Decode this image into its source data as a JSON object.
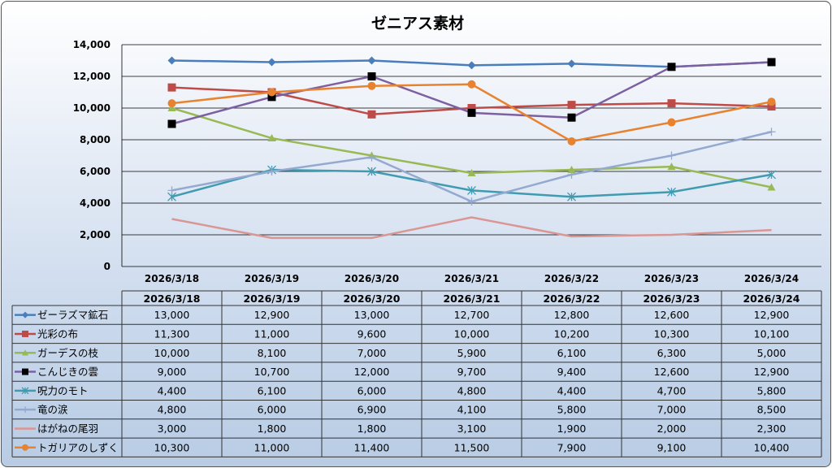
{
  "chart_data": {
    "type": "line",
    "title": "ゼニアス素材",
    "categories": [
      "2026/3/18",
      "2026/3/19",
      "2026/3/20",
      "2026/3/21",
      "2026/3/22",
      "2026/3/23",
      "2026/3/24"
    ],
    "ylim": [
      0,
      14000
    ],
    "yticks": [
      0,
      2000,
      4000,
      6000,
      8000,
      10000,
      12000,
      14000
    ],
    "ytick_labels": [
      "0",
      "2,000",
      "4,000",
      "6,000",
      "8,000",
      "10,000",
      "12,000",
      "14,000"
    ],
    "grid": true,
    "legend": "data-table",
    "series": [
      {
        "name": "ゼーラズマ鉱石",
        "color": "#4a7ebb",
        "marker": "diamond",
        "values": [
          13000,
          12900,
          13000,
          12700,
          12800,
          12600,
          12900
        ]
      },
      {
        "name": "光彩の布",
        "color": "#be4b48",
        "marker": "square",
        "values": [
          11300,
          11000,
          9600,
          10000,
          10200,
          10300,
          10100
        ]
      },
      {
        "name": "ガーデスの枝",
        "color": "#98b954",
        "marker": "triangle",
        "values": [
          10000,
          8100,
          7000,
          5900,
          6100,
          6300,
          5000
        ]
      },
      {
        "name": "こんじきの雲",
        "color": "#7d60a0",
        "marker": "black-square",
        "values": [
          9000,
          10700,
          12000,
          9700,
          9400,
          12600,
          12900
        ]
      },
      {
        "name": "呪力のモト",
        "color": "#3f9bb0",
        "marker": "star",
        "values": [
          4400,
          6100,
          6000,
          4800,
          4400,
          4700,
          5800
        ]
      },
      {
        "name": "竜の涙",
        "color": "#93a9cf",
        "marker": "plus",
        "values": [
          4800,
          6000,
          6900,
          4100,
          5800,
          7000,
          8500
        ]
      },
      {
        "name": "はがねの尾羽",
        "color": "#d99694",
        "marker": "none",
        "values": [
          3000,
          1800,
          1800,
          3100,
          1900,
          2000,
          2300
        ]
      },
      {
        "name": "トガリアのしずく",
        "color": "#e8822e",
        "marker": "circle",
        "values": [
          10300,
          11000,
          11400,
          11500,
          7900,
          9100,
          10400
        ]
      }
    ]
  }
}
